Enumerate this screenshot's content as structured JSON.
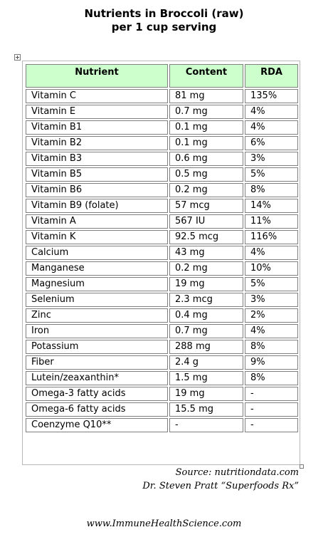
{
  "title": {
    "line1": "Nutrients in Broccoli (raw)",
    "line2": "per 1 cup serving"
  },
  "table": {
    "headers": [
      "Nutrient",
      "Content",
      "RDA"
    ],
    "header_bg": "#ccffcc",
    "rows": [
      [
        "Vitamin C",
        "81 mg",
        "135%"
      ],
      [
        "Vitamin E",
        "0.7 mg",
        "4%"
      ],
      [
        "Vitamin B1",
        "0.1 mg",
        "4%"
      ],
      [
        "Vitamin B2",
        "0.1 mg",
        "6%"
      ],
      [
        "Vitamin B3",
        "0.6 mg",
        "3%"
      ],
      [
        "Vitamin B5",
        "0.5 mg",
        "5%"
      ],
      [
        "Vitamin B6",
        "0.2 mg",
        "8%"
      ],
      [
        "Vitamin B9 (folate)",
        "57 mcg",
        "14%"
      ],
      [
        "Vitamin A",
        "567 IU",
        "11%"
      ],
      [
        "Vitamin K",
        "92.5 mcg",
        "116%"
      ],
      [
        "Calcium",
        "43 mg",
        "4%"
      ],
      [
        "Manganese",
        "0.2 mg",
        "10%"
      ],
      [
        "Magnesium",
        "19 mg",
        "5%"
      ],
      [
        "Selenium",
        "2.3 mcg",
        "3%"
      ],
      [
        "Zinc",
        "0.4 mg",
        "2%"
      ],
      [
        "Iron",
        "0.7 mg",
        "4%"
      ],
      [
        "Potassium",
        "288 mg",
        "8%"
      ],
      [
        "Fiber",
        "2.4 g",
        "9%"
      ],
      [
        "Lutein/zeaxanthin*",
        "1.5 mg",
        "8%"
      ],
      [
        "Omega-3 fatty acids",
        "19 mg",
        "-"
      ],
      [
        "Omega-6 fatty acids",
        "15.5 mg",
        "-"
      ],
      [
        "Coenzyme Q10**",
        "-",
        "-"
      ]
    ]
  },
  "source": {
    "line1": "Source: nutritiondata.com",
    "line2": "Dr. Steven Pratt “Superfoods Rx”"
  },
  "footer": "www.ImmuneHealthScience.com"
}
